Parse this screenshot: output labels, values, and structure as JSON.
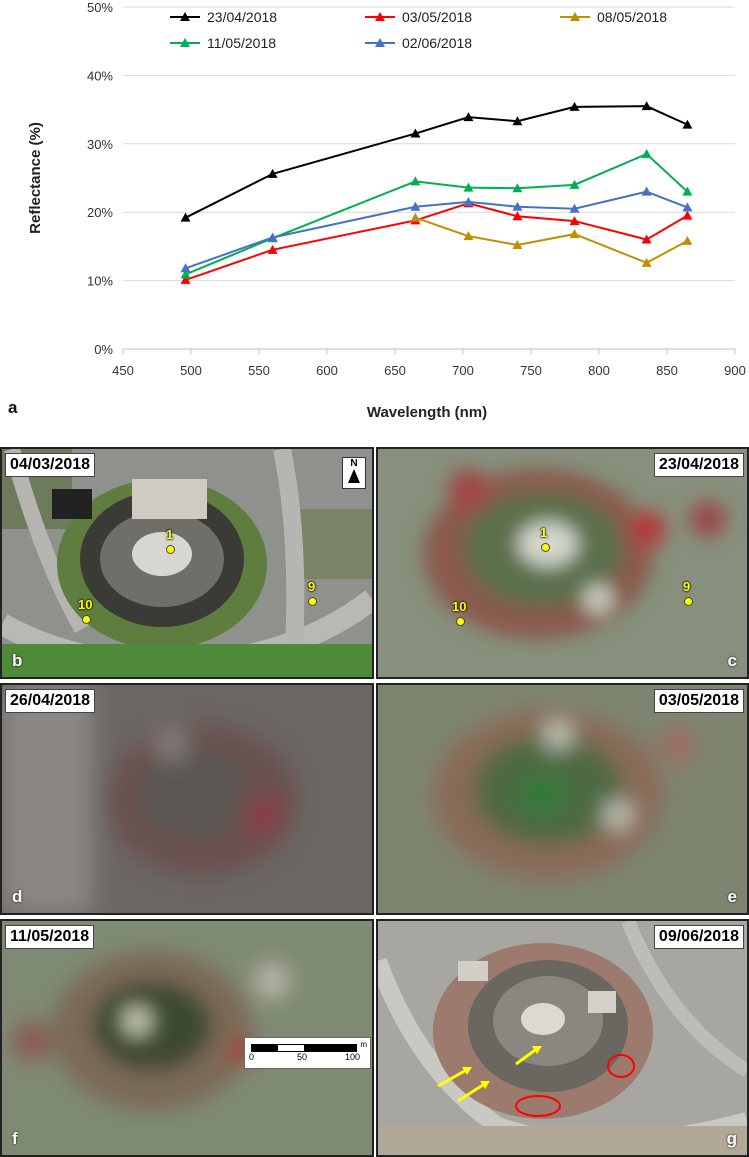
{
  "chart_data": {
    "type": "line",
    "xlabel": "Wavelength (nm)",
    "ylabel": "Reflectance (%)",
    "xlim": [
      450,
      900
    ],
    "ylim": [
      0,
      50
    ],
    "x_ticks": [
      "450",
      "500",
      "550",
      "600",
      "650",
      "700",
      "750",
      "800",
      "850",
      "900"
    ],
    "y_ticks": [
      "0%",
      "10%",
      "20%",
      "30%",
      "40%",
      "50%"
    ],
    "grid": "horizontal",
    "legend_position": "top",
    "x": [
      496,
      560,
      665,
      704,
      740,
      782,
      835,
      865
    ],
    "series": [
      {
        "name": "23/04/2018",
        "color": "#000000",
        "values": [
          19.2,
          25.6,
          31.5,
          33.9,
          33.3,
          35.4,
          35.5,
          32.8
        ]
      },
      {
        "name": "03/05/2018",
        "color": "#ff0000",
        "values": [
          10.1,
          14.5,
          18.8,
          21.3,
          19.4,
          18.7,
          16.0,
          19.5
        ]
      },
      {
        "name": "08/05/2018",
        "color": "#bf9000",
        "values": [
          null,
          null,
          19.2,
          16.5,
          15.2,
          16.8,
          12.6,
          15.8
        ]
      },
      {
        "name": "11/05/2018",
        "color": "#00b050",
        "values": [
          10.9,
          16.2,
          24.5,
          23.6,
          23.5,
          24.0,
          28.5,
          23.0
        ]
      },
      {
        "name": "02/06/2018",
        "color": "#4472c4",
        "values": [
          11.8,
          16.3,
          20.8,
          21.5,
          20.8,
          20.5,
          23.0,
          20.7
        ]
      }
    ]
  },
  "panel_a_letter": "a",
  "panels": [
    {
      "id": "b",
      "date": "04/03/2018",
      "letter": "b"
    },
    {
      "id": "c",
      "date": "23/04/2018",
      "letter": "c"
    },
    {
      "id": "d",
      "date": "26/04/2018",
      "letter": "d"
    },
    {
      "id": "e",
      "date": "03/05/2018",
      "letter": "e"
    },
    {
      "id": "f",
      "date": "11/05/2018",
      "letter": "f"
    },
    {
      "id": "g",
      "date": "09/06/2018",
      "letter": "g"
    }
  ],
  "points": {
    "p1": "1",
    "p9": "9",
    "p10": "10"
  },
  "north_label": "N",
  "scalebar": {
    "t0": "0",
    "t1": "50",
    "t2": "100",
    "unit": "m"
  },
  "colors": {
    "point_marker": "#ffff00",
    "highlight_ellipse": "#ff0000",
    "arrow": "#ffff00"
  }
}
